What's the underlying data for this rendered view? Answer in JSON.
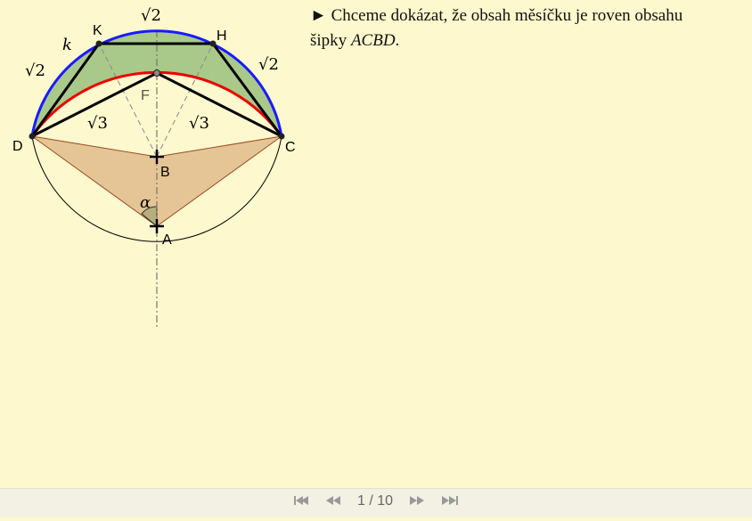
{
  "points": {
    "K": "K",
    "H": "H",
    "F": "F",
    "D": "D",
    "C": "C",
    "B": "B",
    "A": "A"
  },
  "labels": {
    "circle": "k",
    "angle": "α",
    "top": "√2",
    "left": "√2",
    "right": "√2",
    "inner_left": "√3",
    "inner_right": "√3"
  },
  "text": {
    "bullet": "►",
    "before": "Chceme dokázat, že obsah měsíčku je roven obsahu šipky ",
    "emphasis": "ACBD",
    "after": "."
  },
  "nav": {
    "page": "1 / 10"
  }
}
